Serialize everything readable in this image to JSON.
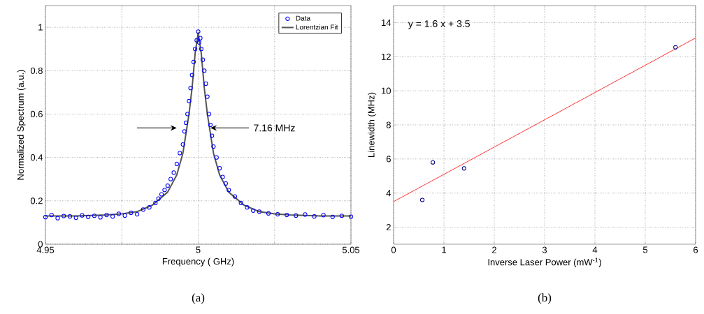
{
  "chart_data": [
    {
      "type": "scatter",
      "xlabel": "Frequency ( GHz)",
      "ylabel": "Normalized Spectrum (a.u.)",
      "xlim": [
        4.95,
        5.05
      ],
      "ylim": [
        0,
        1.1
      ],
      "xticks": [
        4.95,
        {
          "value": 4.975,
          "label": null
        },
        5,
        {
          "value": 5.025,
          "label": null
        },
        5.05
      ],
      "yticks": [
        0,
        0.2,
        0.4,
        0.6,
        0.8,
        1
      ],
      "grid": true,
      "legend": "top right",
      "annotations": [
        {
          "text": "7.16 MHz",
          "x": 5.004,
          "y": 0.536
        },
        "(a)"
      ],
      "series": [
        {
          "name": "Data",
          "marker": "circle",
          "color": "#0000ff",
          "x": [
            4.95,
            4.952,
            4.954,
            4.956,
            4.958,
            4.96,
            4.962,
            4.964,
            4.966,
            4.968,
            4.97,
            4.972,
            4.974,
            4.976,
            4.978,
            4.98,
            4.982,
            4.984,
            4.986,
            4.987,
            4.988,
            4.989,
            4.99,
            4.991,
            4.992,
            4.993,
            4.994,
            4.995,
            4.9955,
            4.996,
            4.9965,
            4.997,
            4.9975,
            4.998,
            4.9985,
            4.999,
            4.9995,
            5.0,
            5.0003,
            5.0007,
            5.001,
            5.0015,
            5.002,
            5.0025,
            5.003,
            5.0035,
            5.004,
            5.0045,
            5.005,
            5.006,
            5.007,
            5.008,
            5.009,
            5.01,
            5.012,
            5.014,
            5.016,
            5.018,
            5.02,
            5.023,
            5.026,
            5.029,
            5.032,
            5.035,
            5.038,
            5.041,
            5.044,
            5.047,
            5.05
          ],
          "values": [
            0.125,
            0.135,
            0.12,
            0.13,
            0.128,
            0.122,
            0.133,
            0.126,
            0.131,
            0.124,
            0.135,
            0.128,
            0.14,
            0.132,
            0.145,
            0.138,
            0.16,
            0.17,
            0.19,
            0.21,
            0.23,
            0.25,
            0.27,
            0.3,
            0.33,
            0.37,
            0.42,
            0.46,
            0.52,
            0.56,
            0.6,
            0.66,
            0.72,
            0.78,
            0.84,
            0.9,
            0.94,
            0.98,
            0.93,
            0.95,
            0.9,
            0.85,
            0.8,
            0.74,
            0.68,
            0.6,
            0.55,
            0.5,
            0.45,
            0.4,
            0.35,
            0.31,
            0.28,
            0.25,
            0.22,
            0.19,
            0.17,
            0.155,
            0.15,
            0.142,
            0.138,
            0.135,
            0.132,
            0.137,
            0.128,
            0.134,
            0.126,
            0.131,
            0.127
          ]
        },
        {
          "name": "Lorentzian Fit",
          "type": "line",
          "color": "#555555",
          "x": [
            4.95,
            4.96,
            4.97,
            4.975,
            4.98,
            4.985,
            4.99,
            4.993,
            4.995,
            4.997,
            4.998,
            4.999,
            5.0,
            5.001,
            5.002,
            5.003,
            5.005,
            5.007,
            5.01,
            5.015,
            5.02,
            5.025,
            5.03,
            5.04,
            5.05
          ],
          "values": [
            0.13,
            0.13,
            0.135,
            0.14,
            0.15,
            0.18,
            0.24,
            0.32,
            0.42,
            0.6,
            0.72,
            0.88,
            0.975,
            0.88,
            0.72,
            0.6,
            0.42,
            0.32,
            0.24,
            0.18,
            0.15,
            0.14,
            0.135,
            0.13,
            0.13
          ]
        }
      ]
    },
    {
      "type": "scatter",
      "xlabel": "Inverse Laser Power (mW$^{-1}$)",
      "ylabel": "Linewidth (MHz)",
      "xlim": [
        0,
        6
      ],
      "ylim": [
        1,
        15
      ],
      "xticks": [
        0,
        1,
        2,
        3,
        4,
        5,
        6
      ],
      "yticks": [
        2,
        4,
        6,
        8,
        10,
        12,
        14
      ],
      "grid": true,
      "annotations": [
        "y = 1.6 x + 3.5",
        "(b)"
      ],
      "series": [
        {
          "marker": "circle",
          "color": "#000080",
          "x": [
            0.57,
            0.78,
            1.4,
            5.6
          ],
          "values": [
            3.6,
            5.8,
            5.45,
            12.55
          ]
        },
        {
          "type": "line",
          "color": "#ff0000",
          "x": [
            0,
            6
          ],
          "values": [
            3.5,
            13.1
          ]
        }
      ]
    }
  ]
}
